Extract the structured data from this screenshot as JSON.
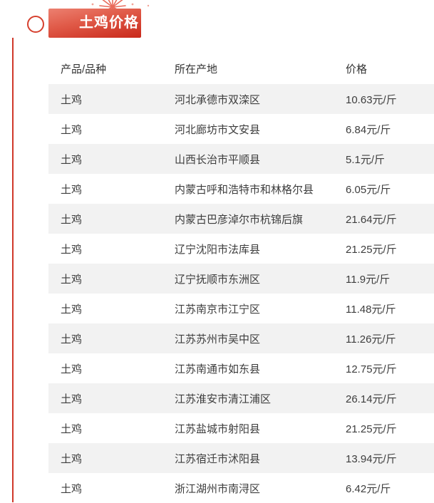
{
  "header": {
    "badge_label": "土鸡价格"
  },
  "colors": {
    "accent_red": "#d0382a",
    "badge_gradient_top": "#ec8070",
    "badge_gradient_bottom": "#c9291b",
    "row_alt_bg": "#f2f2f2",
    "text": "#3d3d3d"
  },
  "table": {
    "headers": [
      "产品/品种",
      "所在产地",
      "价格"
    ],
    "rows": [
      {
        "product": "土鸡",
        "origin": "河北承德市双滦区",
        "price": "10.63元/斤"
      },
      {
        "product": "土鸡",
        "origin": "河北廊坊市文安县",
        "price": "6.84元/斤"
      },
      {
        "product": "土鸡",
        "origin": "山西长治市平顺县",
        "price": "5.1元/斤"
      },
      {
        "product": "土鸡",
        "origin": "内蒙古呼和浩特市和林格尔县",
        "price": "6.05元/斤"
      },
      {
        "product": "土鸡",
        "origin": "内蒙古巴彦淖尔市杭锦后旗",
        "price": "21.64元/斤"
      },
      {
        "product": "土鸡",
        "origin": "辽宁沈阳市法库县",
        "price": "21.25元/斤"
      },
      {
        "product": "土鸡",
        "origin": "辽宁抚顺市东洲区",
        "price": "11.9元/斤"
      },
      {
        "product": "土鸡",
        "origin": "江苏南京市江宁区",
        "price": "11.48元/斤"
      },
      {
        "product": "土鸡",
        "origin": "江苏苏州市吴中区",
        "price": "11.26元/斤"
      },
      {
        "product": "土鸡",
        "origin": "江苏南通市如东县",
        "price": "12.75元/斤"
      },
      {
        "product": "土鸡",
        "origin": "江苏淮安市清江浦区",
        "price": "26.14元/斤"
      },
      {
        "product": "土鸡",
        "origin": "江苏盐城市射阳县",
        "price": "21.25元/斤"
      },
      {
        "product": "土鸡",
        "origin": "江苏宿迁市沭阳县",
        "price": "13.94元/斤"
      },
      {
        "product": "土鸡",
        "origin": "浙江湖州市南浔区",
        "price": "6.42元/斤"
      }
    ]
  }
}
